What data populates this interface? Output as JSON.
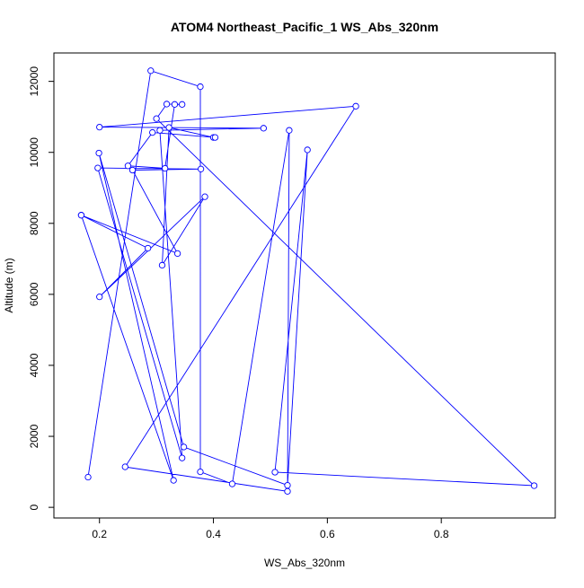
{
  "chart_data": {
    "type": "line",
    "title": "ATOM4 Northeast_Pacific_1 WS_Abs_320nm",
    "xlabel": "WS_Abs_320nm",
    "ylabel": "Altitude (m)",
    "xlim": [
      0.12,
      1.0
    ],
    "ylim": [
      -300,
      12800
    ],
    "x_ticks": [
      0.2,
      0.4,
      0.6,
      0.8
    ],
    "x_tick_labels": [
      "0.2",
      "0.4",
      "0.6",
      "0.8"
    ],
    "y_ticks": [
      0,
      2000,
      4000,
      6000,
      8000,
      10000,
      12000
    ],
    "y_tick_labels": [
      "0",
      "2000",
      "4000",
      "6000",
      "8000",
      "10000",
      "12000"
    ],
    "grid": false,
    "line_color": "#0000ff",
    "marker": "open-circle",
    "series": [
      {
        "points": [
          {
            "x": 0.18,
            "y": 850
          },
          {
            "x": 0.29,
            "y": 12300
          },
          {
            "x": 0.377,
            "y": 11850
          },
          {
            "x": 0.377,
            "y": 1000
          },
          {
            "x": 0.433,
            "y": 660
          },
          {
            "x": 0.533,
            "y": 10620
          },
          {
            "x": 0.53,
            "y": 450
          },
          {
            "x": 0.245,
            "y": 1140
          },
          {
            "x": 0.65,
            "y": 11300
          },
          {
            "x": 0.2,
            "y": 10710
          },
          {
            "x": 0.488,
            "y": 10680
          },
          {
            "x": 0.306,
            "y": 10620
          },
          {
            "x": 0.345,
            "y": 1390
          },
          {
            "x": 0.197,
            "y": 9560
          },
          {
            "x": 0.378,
            "y": 9530
          },
          {
            "x": 0.258,
            "y": 9500
          },
          {
            "x": 0.337,
            "y": 7150
          },
          {
            "x": 0.168,
            "y": 8230
          },
          {
            "x": 0.285,
            "y": 7300
          },
          {
            "x": 0.2,
            "y": 5930
          },
          {
            "x": 0.385,
            "y": 8750
          },
          {
            "x": 0.31,
            "y": 6820
          },
          {
            "x": 0.322,
            "y": 10700
          },
          {
            "x": 0.4,
            "y": 10420
          },
          {
            "x": 0.403,
            "y": 10420
          },
          {
            "x": 0.293,
            "y": 10560
          },
          {
            "x": 0.25,
            "y": 9620
          },
          {
            "x": 0.315,
            "y": 9550
          },
          {
            "x": 0.332,
            "y": 11350
          },
          {
            "x": 0.345,
            "y": 11350
          },
          {
            "x": 0.318,
            "y": 11360
          },
          {
            "x": 0.3,
            "y": 10950
          },
          {
            "x": 0.963,
            "y": 610
          },
          {
            "x": 0.508,
            "y": 990
          },
          {
            "x": 0.565,
            "y": 10070
          },
          {
            "x": 0.53,
            "y": 620
          },
          {
            "x": 0.348,
            "y": 1700
          },
          {
            "x": 0.199,
            "y": 9980
          },
          {
            "x": 0.33,
            "y": 760
          },
          {
            "x": 0.168,
            "y": 8230
          }
        ]
      }
    ]
  }
}
